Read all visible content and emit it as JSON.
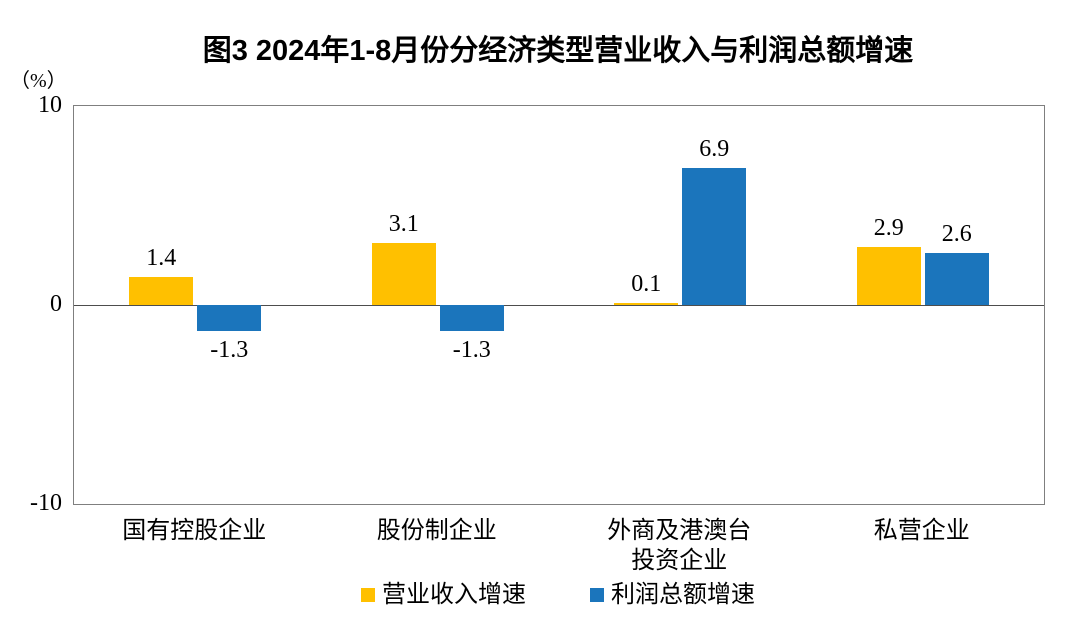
{
  "title": "图3  2024年1-8月份分经济类型营业收入与利润总额增速",
  "chart_data": {
    "type": "bar",
    "title": "图3  2024年1-8月份分经济类型营业收入与利润总额增速",
    "unit_label": "（%）",
    "categories": [
      "国有控股企业",
      "股份制企业",
      "外商及港澳台\n投资企业",
      "私营企业"
    ],
    "series": [
      {
        "name": "营业收入增速",
        "color": "#FFC000",
        "values": [
          1.4,
          3.1,
          0.1,
          2.9
        ]
      },
      {
        "name": "利润总额增速",
        "color": "#1B75BC",
        "values": [
          -1.3,
          -1.3,
          6.9,
          2.6
        ]
      }
    ],
    "ylim": [
      -10,
      10
    ],
    "yticks": [
      10,
      0,
      -10
    ],
    "grid": false,
    "data_labels": true,
    "legend_position": "bottom"
  },
  "colors": {
    "revenue_bar": "#FFC000",
    "profit_bar": "#1B75BC",
    "plot_border": "#7F7F7F",
    "zero_line": "#4D4D4D",
    "text": "#000000",
    "background": "#FFFFFF"
  }
}
